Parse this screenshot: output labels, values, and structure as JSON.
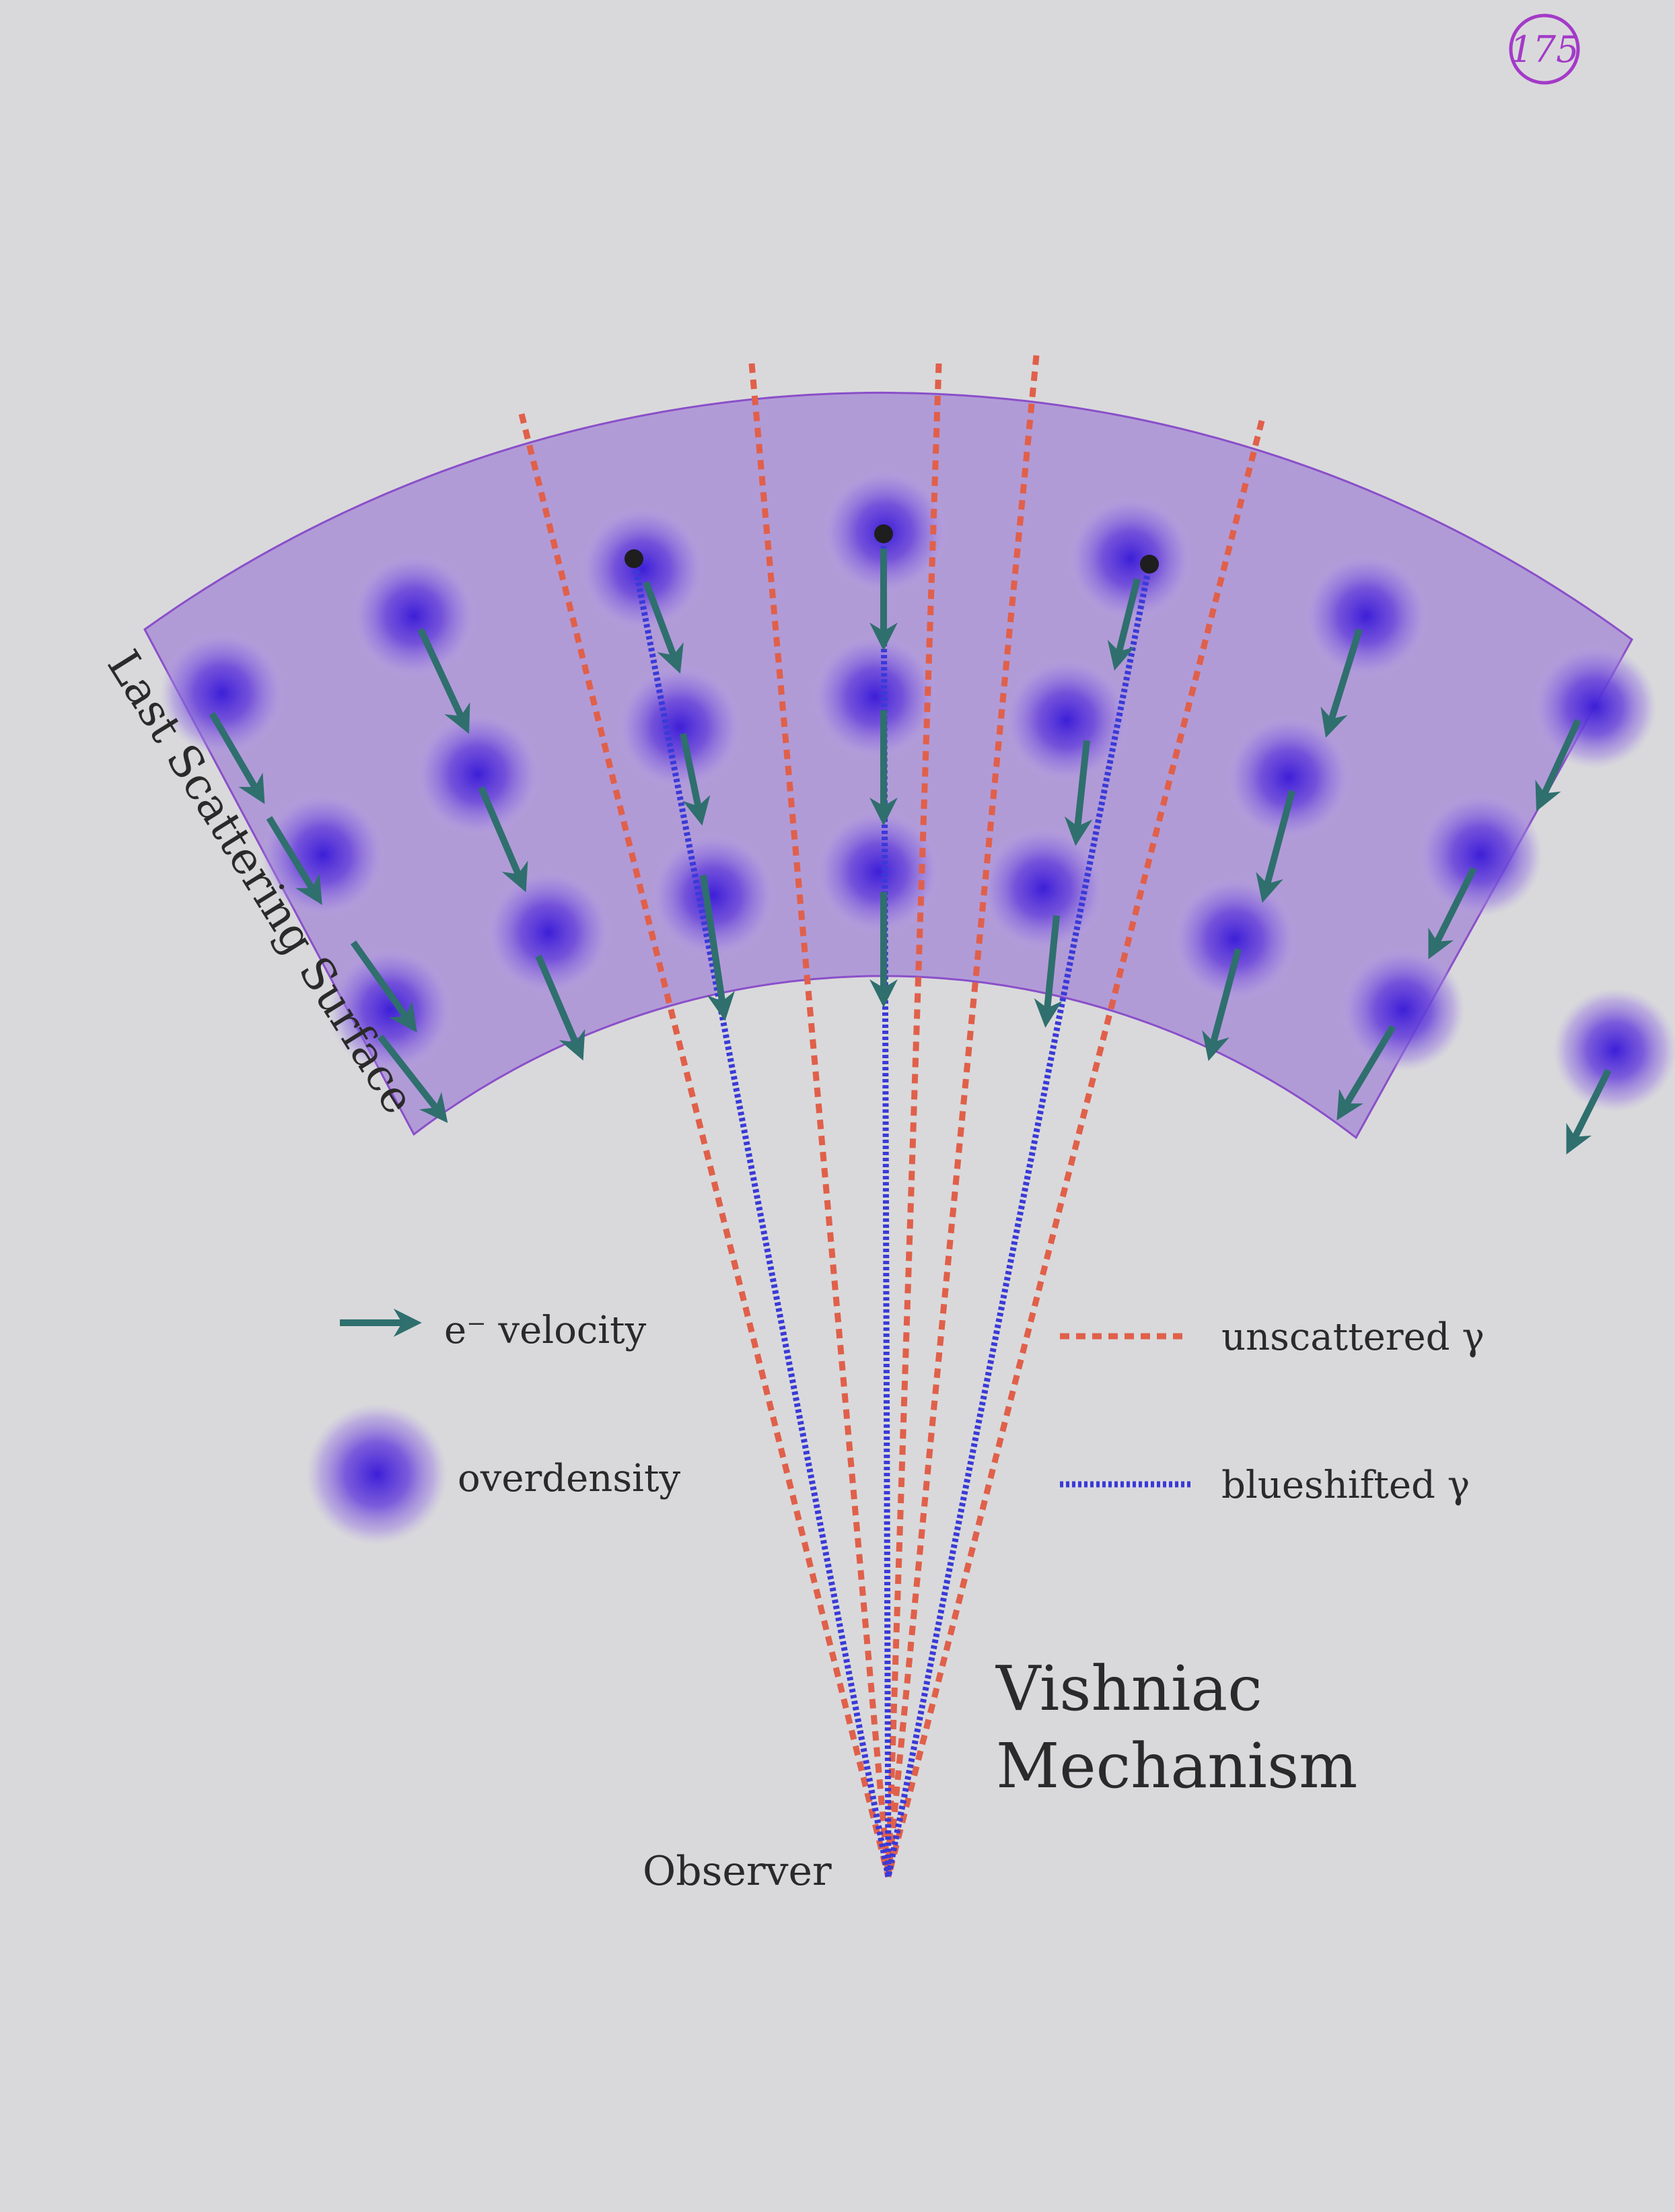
{
  "page_number": "175",
  "surface_label": "Last Scattering Surface",
  "observer_label": "Observer",
  "title_line1": "Vishniac",
  "title_line2": "Mechanism",
  "legend": {
    "velocity": "e⁻ velocity",
    "overdensity": "overdensity",
    "unscattered": "unscattered γ",
    "blueshifted": "blueshifted γ"
  },
  "colors": {
    "background": "#d9d9db",
    "band": "#a98fd6",
    "band_edge": "#8a4fc9",
    "overdensity_core": "#3d1fd8",
    "arrow": "#2f6f6e",
    "unscattered": "#e0604a",
    "blueshifted": "#3a3ad8",
    "page_stamp": "#a43ac8"
  },
  "icons": {
    "velocity": "teal-arrow-icon",
    "overdensity": "blob-icon",
    "electron": "dot-icon"
  }
}
